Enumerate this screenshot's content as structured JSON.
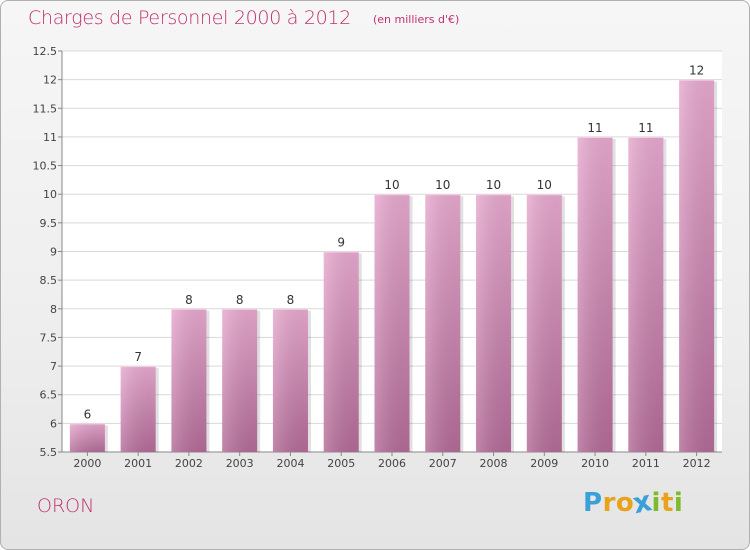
{
  "header": {
    "title": "Charges de Personnel 2000 à 2012",
    "subtitle": "(en milliers d'€)"
  },
  "footer": {
    "commune": "ORON",
    "logo": [
      "P",
      "r",
      "o",
      "x",
      "i",
      "t",
      "i"
    ]
  },
  "colors": {
    "title": "#c0316f",
    "bar_top": "#e7a9cf",
    "bar_bottom": "#b36b97",
    "logo_letters": [
      "#3aa0d8",
      "#e8a21c",
      "#e8a21c",
      "#3aa0d8",
      "#7dbb2a",
      "#e8a21c",
      "#7dbb2a"
    ]
  },
  "chart_data": {
    "type": "bar",
    "categories": [
      "2000",
      "2001",
      "2002",
      "2003",
      "2004",
      "2005",
      "2006",
      "2007",
      "2008",
      "2009",
      "2010",
      "2011",
      "2012"
    ],
    "values": [
      6,
      7,
      8,
      8,
      8,
      9,
      10,
      10,
      10,
      10,
      11,
      11,
      12
    ],
    "data_labels": [
      "6",
      "7",
      "8",
      "8",
      "8",
      "9",
      "10",
      "10",
      "10",
      "10",
      "11",
      "11",
      "12"
    ],
    "ylim": [
      5.5,
      12.5
    ],
    "yticks": [
      5.5,
      6,
      6.5,
      7,
      7.5,
      8,
      8.5,
      9,
      9.5,
      10,
      10.5,
      11,
      11.5,
      12,
      12.5
    ],
    "ytick_labels": [
      "5.5",
      "6",
      "6.5",
      "7",
      "7.5",
      "8",
      "8.5",
      "9",
      "9.5",
      "10",
      "10.5",
      "11",
      "11.5",
      "12",
      "12.5"
    ],
    "grid": true,
    "xlabel": "",
    "ylabel": ""
  }
}
